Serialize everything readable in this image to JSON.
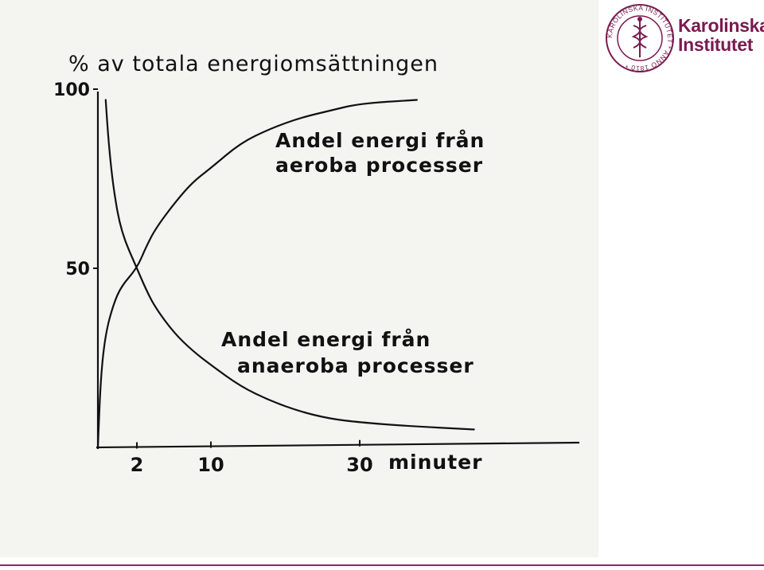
{
  "brand": {
    "name_line1": "Karolinska",
    "name_line2": "Institutet",
    "seal_text": "KAROLINSKA INSTITUTET * ANNO 1810 *",
    "color": "#7a1a4f"
  },
  "chart_data": {
    "type": "line",
    "title": "% av totala energiomsättningen",
    "xlabel": "minuter",
    "x_ticks": [
      2,
      10,
      30
    ],
    "y_ticks": [
      50,
      100
    ],
    "xlim": [
      0,
      41
    ],
    "ylim": [
      0,
      100
    ],
    "grid": false,
    "series": [
      {
        "name": "Andel energi från aeroba processer",
        "label_line1": "Andel energi från",
        "label_line2": "aeroba processer",
        "x": [
          0,
          0.15,
          0.4,
          0.8,
          1.2,
          2,
          3,
          4,
          6,
          8,
          10,
          14,
          18,
          22,
          26,
          30,
          35
        ],
        "y": [
          0,
          20,
          32,
          40,
          45,
          50,
          56,
          61,
          68,
          74,
          78,
          85,
          89,
          92,
          94,
          96,
          97
        ]
      },
      {
        "name": "Andel energi från anaeroba processer",
        "label_line1": "Andel energi från",
        "label_line2": "anaeroba processer",
        "x": [
          0.4,
          0.55,
          0.8,
          1.2,
          2,
          3,
          4,
          6,
          8,
          10,
          14,
          18,
          22,
          26,
          30,
          34,
          40
        ],
        "y": [
          97,
          85,
          72,
          60,
          50,
          44,
          39,
          32,
          27,
          23,
          17,
          13,
          10,
          8,
          7,
          6,
          5
        ]
      }
    ]
  }
}
